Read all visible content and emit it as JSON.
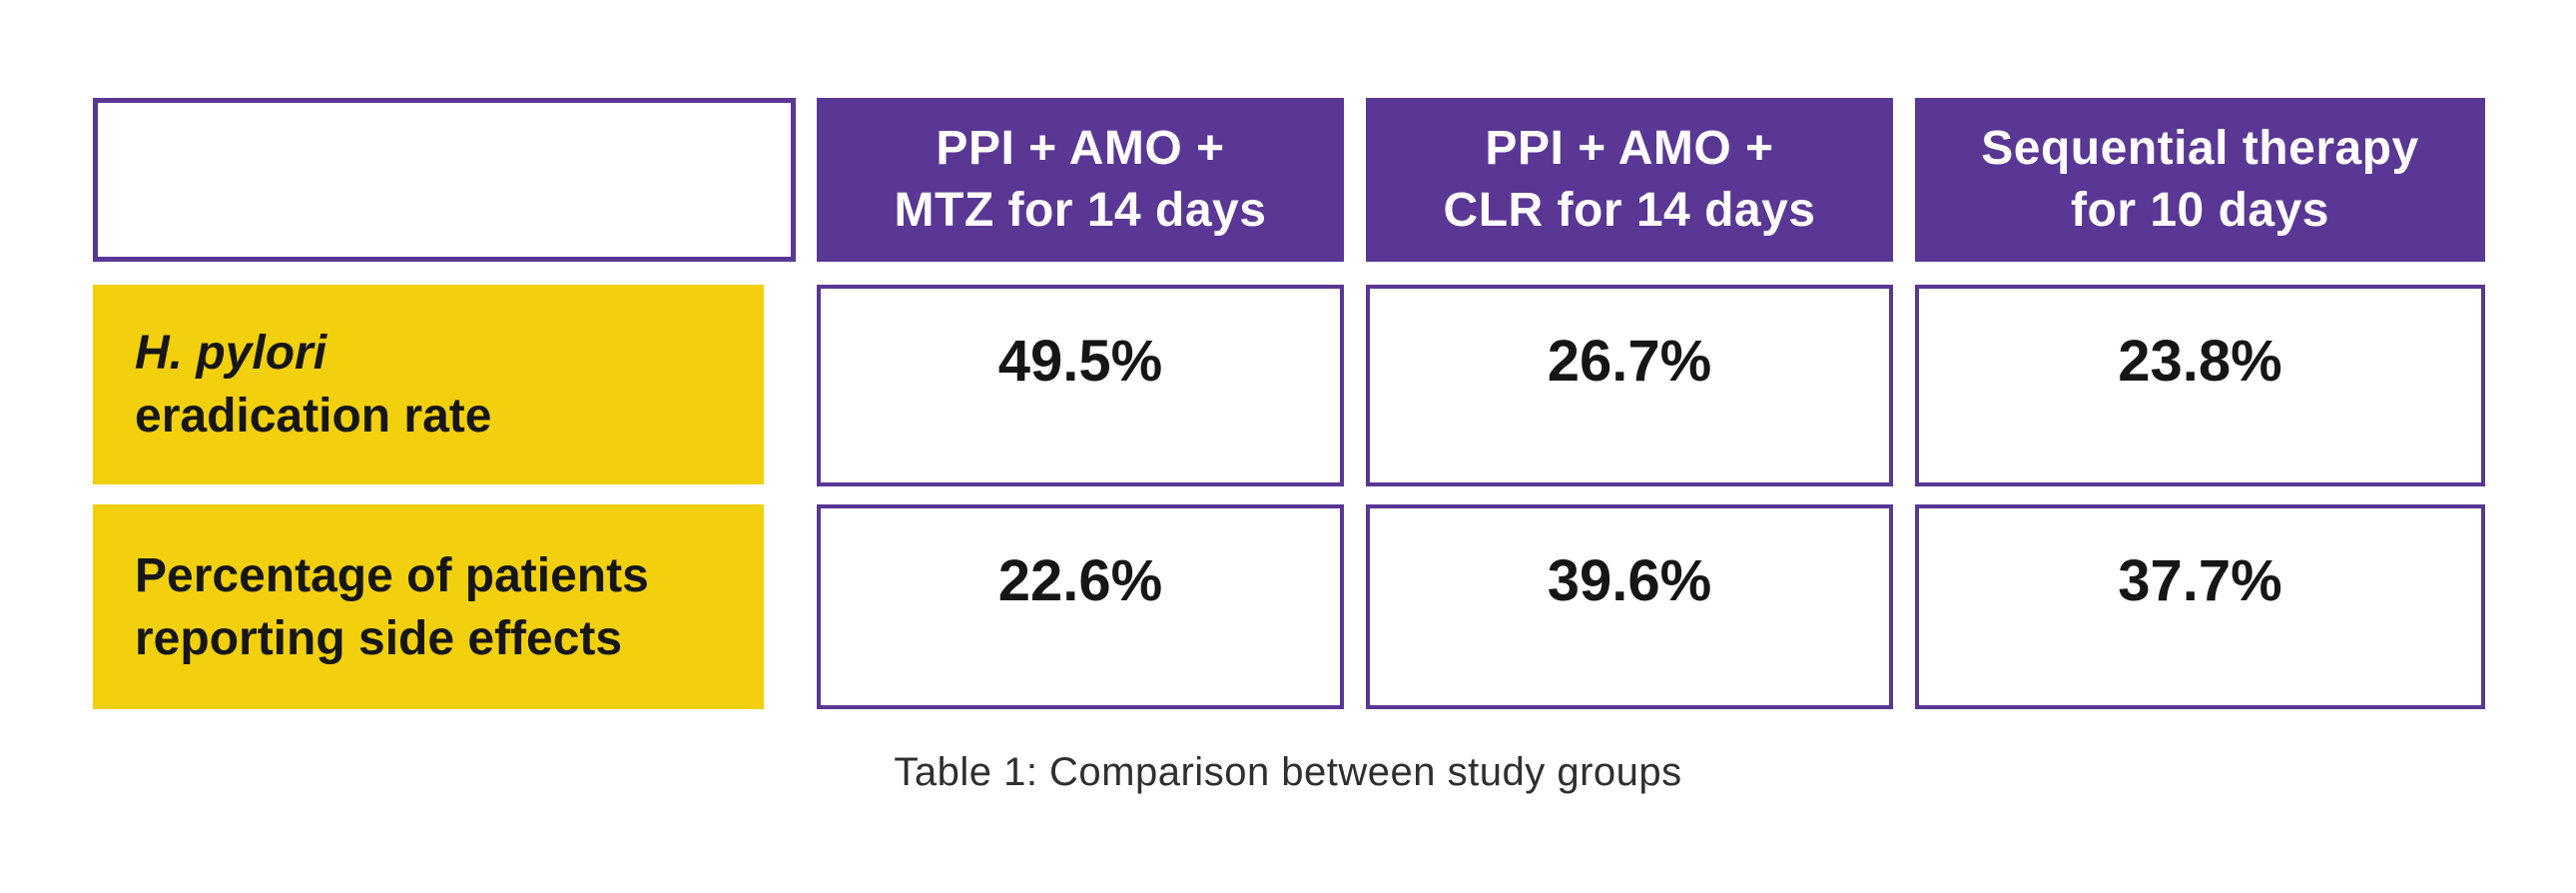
{
  "colors": {
    "header_purple": "#5a3794",
    "cell_border_purple": "#5a3794",
    "label_yellow": "#f2d00e",
    "header_text": "#ffffff",
    "body_text": "#161616",
    "caption_text": "#2f2f2f",
    "background": "#ffffff"
  },
  "table": {
    "columns": [
      {
        "line1": "PPI + AMO +",
        "line2": "MTZ for 14 days"
      },
      {
        "line1": "PPI + AMO +",
        "line2": "CLR for 14 days"
      },
      {
        "line1": "Sequential therapy",
        "line2": "for 10 days"
      }
    ],
    "rows": [
      {
        "label_line1": "H. pylori",
        "label_line2": "eradication rate",
        "values": [
          "49.5%",
          "26.7%",
          "23.8%"
        ]
      },
      {
        "label_line1": "Percentage of patients",
        "label_line2": "reporting side effects",
        "values": [
          "22.6%",
          "39.6%",
          "37.7%"
        ]
      }
    ],
    "caption": "Table 1: Comparison between study groups"
  },
  "chart_data": {
    "type": "table",
    "title": "Table 1: Comparison between study groups",
    "columns": [
      "PPI + AMO + MTZ for 14 days",
      "PPI + AMO + CLR for 14 days",
      "Sequential therapy for 10 days"
    ],
    "rows": [
      {
        "label": "H. pylori eradication rate",
        "values_percent": [
          49.5,
          26.7,
          23.8
        ]
      },
      {
        "label": "Percentage of patients reporting side effects",
        "values_percent": [
          22.6,
          39.6,
          37.7
        ]
      }
    ]
  }
}
